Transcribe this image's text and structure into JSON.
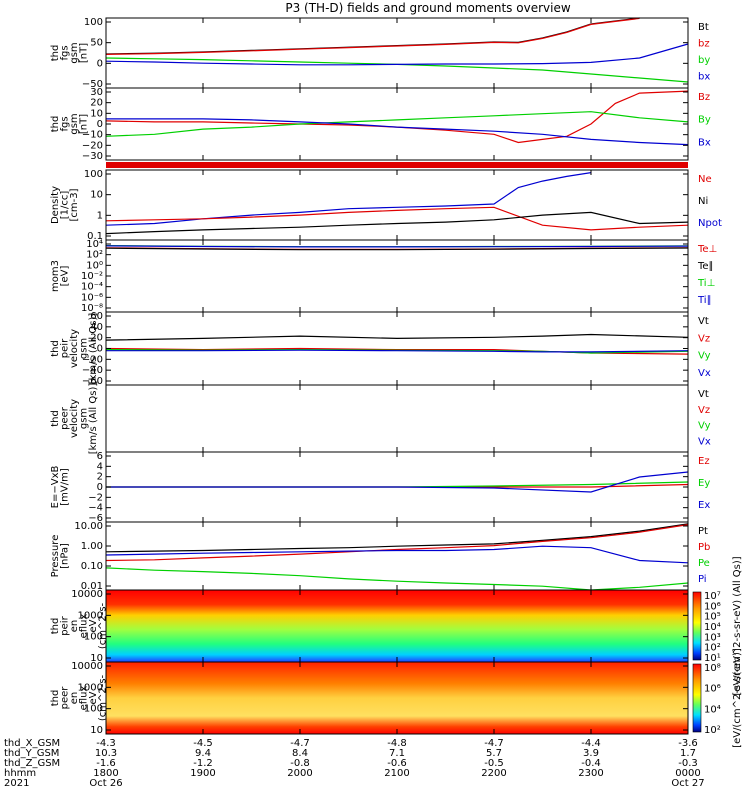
{
  "title": "P3 (TH-D) fields and ground moments overview",
  "colors": {
    "black": "#000000",
    "red": "#e00000",
    "green": "#00d000",
    "blue": "#0000d0"
  },
  "chart_data": [
    {
      "type": "line",
      "id": "fgs_gsm_bt",
      "ylabel": [
        "thd",
        "fgs",
        "gsm",
        "[nT]"
      ],
      "yticks": [
        "100",
        "50",
        "0",
        "−50"
      ],
      "ylim": [
        -70,
        105
      ],
      "series": [
        {
          "name": "Bt",
          "color": "black",
          "x": [
            1800,
            1830,
            1900,
            1930,
            2000,
            2030,
            2100,
            2130,
            2200,
            2215,
            2230,
            2245,
            2300,
            2330
          ],
          "values": [
            15,
            17,
            20,
            24,
            28,
            32,
            36,
            40,
            45,
            44,
            55,
            70,
            90,
            105
          ]
        },
        {
          "name": "bz",
          "color": "red",
          "x": [
            1800,
            1830,
            1900,
            1930,
            2000,
            2030,
            2100,
            2130,
            2200,
            2215,
            2230,
            2245,
            2300,
            2330
          ],
          "values": [
            14,
            16,
            19,
            23,
            27,
            31,
            35,
            39,
            44,
            43,
            54,
            69,
            89,
            104
          ]
        },
        {
          "name": "by",
          "color": "green",
          "x": [
            1800,
            1830,
            1900,
            1930,
            2000,
            2030,
            2100,
            2130,
            2200,
            2230,
            2300,
            2330,
            2400
          ],
          "values": [
            5,
            3,
            1,
            -2,
            -5,
            -8,
            -11,
            -15,
            -20,
            -25,
            -35,
            -45,
            -55
          ]
        },
        {
          "name": "bx",
          "color": "blue",
          "x": [
            1800,
            1830,
            1900,
            1930,
            2000,
            2030,
            2100,
            2130,
            2200,
            2230,
            2300,
            2330,
            2400
          ],
          "values": [
            -3,
            -5,
            -8,
            -10,
            -12,
            -12,
            -11,
            -10,
            -10,
            -9,
            -6,
            5,
            40
          ]
        }
      ],
      "legend": [
        "Bt",
        "bz",
        "by",
        "bx"
      ]
    },
    {
      "type": "line",
      "id": "fgs_gsm_components",
      "ylabel": [
        "thd",
        "fgs",
        "gsm",
        "[nT]"
      ],
      "yticks": [
        "30",
        "20",
        "10",
        "0",
        "−10",
        "−20",
        "−30"
      ],
      "ylim": [
        -35,
        35
      ],
      "series": [
        {
          "name": "Bz",
          "color": "red",
          "x": [
            1800,
            1830,
            1900,
            1930,
            2000,
            2030,
            2100,
            2130,
            2200,
            2215,
            2230,
            2245,
            2300,
            2315,
            2330,
            2400
          ],
          "values": [
            3,
            2,
            2,
            1,
            0,
            -1,
            -3,
            -6,
            -10,
            -18,
            -15,
            -12,
            0,
            20,
            30,
            32
          ]
        },
        {
          "name": "By",
          "color": "green",
          "x": [
            1800,
            1830,
            1900,
            1930,
            2000,
            2030,
            2100,
            2130,
            2200,
            2230,
            2300,
            2330,
            2400
          ],
          "values": [
            -12,
            -10,
            -5,
            -3,
            0,
            2,
            4,
            6,
            8,
            10,
            12,
            6,
            2
          ]
        },
        {
          "name": "Bx",
          "color": "blue",
          "x": [
            1800,
            1830,
            1900,
            1930,
            2000,
            2030,
            2100,
            2130,
            2200,
            2230,
            2300,
            2330,
            2400
          ],
          "values": [
            5,
            5,
            5,
            4,
            2,
            0,
            -3,
            -5,
            -7,
            -10,
            -15,
            -18,
            -20
          ]
        }
      ],
      "legend": [
        "Bz",
        "By",
        "Bx"
      ]
    },
    {
      "type": "line",
      "id": "density",
      "yscale": "log",
      "ylabel": [
        "Density",
        "[1/cc]",
        "[cm-3]"
      ],
      "yticks": [
        "100",
        "10",
        "1",
        "0.1"
      ],
      "ylim": [
        0.1,
        200
      ],
      "series": [
        {
          "name": "Npot",
          "color": "blue",
          "x": [
            1800,
            1830,
            1900,
            1930,
            2000,
            2030,
            2100,
            2130,
            2200,
            2215,
            2230,
            2245,
            2300
          ],
          "values": [
            0.5,
            0.6,
            1,
            1.5,
            2,
            3,
            3.5,
            4,
            5,
            30,
            60,
            100,
            150
          ]
        },
        {
          "name": "Ne",
          "color": "red",
          "x": [
            1800,
            1830,
            1900,
            1930,
            2000,
            2030,
            2100,
            2130,
            2200,
            2230,
            2300,
            2330,
            2400
          ],
          "values": [
            0.8,
            0.9,
            1,
            1.2,
            1.5,
            2,
            2.5,
            3,
            3.5,
            0.5,
            0.3,
            0.4,
            0.5
          ]
        },
        {
          "name": "Ni",
          "color": "black",
          "x": [
            1800,
            1830,
            1900,
            1930,
            2000,
            2030,
            2100,
            2130,
            2200,
            2230,
            2300,
            2330,
            2400
          ],
          "values": [
            0.2,
            0.25,
            0.3,
            0.35,
            0.4,
            0.5,
            0.6,
            0.7,
            0.9,
            1.5,
            2,
            0.6,
            0.7
          ]
        }
      ],
      "legend": [
        "Ne",
        "Ni",
        "Npot"
      ]
    },
    {
      "type": "line",
      "id": "temperature",
      "yscale": "log",
      "ylabel": [
        "mom3",
        "[eV]"
      ],
      "yticks": [
        "10⁴",
        "10²",
        "10⁰",
        "10⁻²",
        "10⁻⁴",
        "10⁻⁶",
        "10⁻⁸"
      ],
      "ylim": [
        1e-09,
        100000.0
      ],
      "series": [
        {
          "name": "Te⊥",
          "color": "red",
          "x": [
            1800,
            1900,
            2000,
            2100,
            2200,
            2300,
            2400
          ],
          "values": [
            3000,
            2000,
            1500,
            1500,
            1800,
            2500,
            3000
          ]
        },
        {
          "name": "Te∥",
          "color": "black",
          "x": [
            1800,
            1900,
            2000,
            2100,
            2200,
            2300,
            2400
          ],
          "values": [
            2500,
            1800,
            1300,
            1300,
            1600,
            2200,
            2800
          ]
        },
        {
          "name": "Ti⊥",
          "color": "green",
          "x": [
            1800,
            1900,
            2000,
            2100,
            2200,
            2300,
            2400
          ],
          "values": [
            8000,
            6000,
            5000,
            5000,
            5500,
            6000,
            7000
          ]
        },
        {
          "name": "Ti∥",
          "color": "blue",
          "x": [
            1800,
            1900,
            2000,
            2100,
            2200,
            2300,
            2400
          ],
          "values": [
            7000,
            5500,
            4500,
            4500,
            5000,
            5500,
            6500
          ]
        }
      ],
      "legend": [
        "Te⊥",
        "Te∥",
        "Ti⊥",
        "Ti∥"
      ]
    },
    {
      "type": "line",
      "id": "peir_velocity",
      "ylabel": [
        "thd",
        "peir",
        "velocity",
        "gsm",
        "[km/s (All Qs)]"
      ],
      "yticks": [
        "60",
        "40",
        "20",
        "0",
        "−20",
        "−40",
        "−60"
      ],
      "ylim": [
        -65,
        65
      ],
      "series": [
        {
          "name": "Vt",
          "color": "black",
          "x": [
            1800,
            1900,
            2000,
            2100,
            2200,
            2230,
            2300,
            2400
          ],
          "values": [
            15,
            18,
            22,
            18,
            20,
            22,
            25,
            20
          ]
        },
        {
          "name": "Vz",
          "color": "red",
          "x": [
            1800,
            1900,
            2000,
            2100,
            2200,
            2230,
            2300,
            2400
          ],
          "values": [
            0,
            -2,
            0,
            -2,
            -2,
            -5,
            -8,
            -10
          ]
        },
        {
          "name": "Vy",
          "color": "green",
          "x": [
            1800,
            1900,
            2000,
            2100,
            2200,
            2230,
            2300,
            2400
          ],
          "values": [
            -2,
            -3,
            -2,
            -3,
            -4,
            -5,
            -8,
            -5
          ]
        },
        {
          "name": "Vx",
          "color": "blue",
          "x": [
            1800,
            1900,
            2000,
            2100,
            2200,
            2230,
            2300,
            2400
          ],
          "values": [
            -4,
            -4,
            -3,
            -4,
            -5,
            -6,
            -6,
            -4
          ]
        }
      ],
      "legend": [
        "Vt",
        "Vz",
        "Vy",
        "Vx"
      ]
    },
    {
      "type": "line",
      "id": "peer_velocity",
      "ylabel": [
        "thd",
        "peer",
        "velocity",
        "gsm",
        "[km/s (All Qs)]"
      ],
      "yticks": [],
      "series": [],
      "legend": [
        "Vt",
        "Vz",
        "Vy",
        "Vx"
      ]
    },
    {
      "type": "line",
      "id": "e_field",
      "ylabel": [
        "E=−VxB",
        "[mV/m]"
      ],
      "yticks": [
        "6",
        "4",
        "2",
        "0",
        "−2",
        "−4",
        "−6"
      ],
      "ylim": [
        -7,
        7
      ],
      "series": [
        {
          "name": "Ez",
          "color": "red",
          "x": [
            1800,
            1900,
            2000,
            2100,
            2200,
            2300,
            2400
          ],
          "values": [
            0,
            0,
            0,
            0,
            0,
            0,
            0.5
          ]
        },
        {
          "name": "Ey",
          "color": "green",
          "x": [
            1800,
            1900,
            2000,
            2100,
            2200,
            2300,
            2400
          ],
          "values": [
            0,
            0,
            0,
            0,
            0.2,
            0.5,
            1
          ]
        },
        {
          "name": "Ex",
          "color": "blue",
          "x": [
            1800,
            1900,
            2000,
            2100,
            2200,
            2300,
            2330,
            2400
          ],
          "values": [
            0,
            0,
            0,
            0,
            -0.2,
            -1,
            2,
            3
          ]
        }
      ],
      "legend": [
        "Ez",
        "Ey",
        "Ex"
      ]
    },
    {
      "type": "line",
      "id": "pressure",
      "yscale": "log",
      "ylabel": [
        "Pressure",
        "[nPa]"
      ],
      "yticks": [
        "10.00",
        "1.00",
        "0.10",
        "0.01"
      ],
      "ylim": [
        0.005,
        25
      ],
      "series": [
        {
          "name": "Pt",
          "color": "black",
          "x": [
            1800,
            1830,
            1900,
            1930,
            2000,
            2030,
            2100,
            2130,
            2200,
            2230,
            2300,
            2330,
            2400
          ],
          "values": [
            0.6,
            0.65,
            0.7,
            0.8,
            0.9,
            1,
            1.2,
            1.4,
            1.6,
            2.5,
            4,
            8,
            20
          ]
        },
        {
          "name": "Pb",
          "color": "red",
          "x": [
            1800,
            1830,
            1900,
            1930,
            2000,
            2030,
            2100,
            2130,
            2200,
            2230,
            2300,
            2330,
            2400
          ],
          "values": [
            0.2,
            0.22,
            0.28,
            0.35,
            0.45,
            0.6,
            0.8,
            1,
            1.3,
            2.2,
            3.5,
            7,
            18
          ]
        },
        {
          "name": "Pe",
          "color": "green",
          "x": [
            1800,
            1830,
            1900,
            1930,
            2000,
            2030,
            2100,
            2130,
            2200,
            2230,
            2300,
            2330,
            2400
          ],
          "values": [
            0.08,
            0.06,
            0.05,
            0.04,
            0.03,
            0.02,
            0.015,
            0.012,
            0.01,
            0.008,
            0.005,
            0.007,
            0.012
          ]
        },
        {
          "name": "Pi",
          "color": "blue",
          "x": [
            1800,
            1830,
            1900,
            1930,
            2000,
            2030,
            2100,
            2130,
            2200,
            2230,
            2300,
            2330,
            2400
          ],
          "values": [
            0.4,
            0.45,
            0.5,
            0.55,
            0.6,
            0.65,
            0.7,
            0.7,
            0.8,
            1.2,
            1,
            0.2,
            0.15
          ]
        }
      ],
      "legend": [
        "Pt",
        "Pb",
        "Pe",
        "Pi"
      ]
    },
    {
      "type": "heatmap",
      "id": "peir_eflux",
      "ylabel": [
        "thd",
        "peir",
        "en",
        "eflux",
        "eV",
        "(cm^2-s-",
        "sr-eV)"
      ],
      "yticks": [
        "10000",
        "1000",
        "100",
        "10"
      ],
      "ylim": [
        5,
        20000
      ],
      "colorbar": {
        "label": "[eV/(cm^2-s-sr-eV) (All Qs)]",
        "ticks": [
          "10⁷",
          "10⁶",
          "10⁵",
          "10⁴",
          "10³",
          "10²",
          "10¹"
        ]
      }
    },
    {
      "type": "heatmap",
      "id": "peer_eflux",
      "ylabel": [
        "thd",
        "peer",
        "en",
        "eflux",
        "eV",
        "(cm^2-s-",
        "sr-eV)"
      ],
      "yticks": [
        "10000",
        "1000",
        "100",
        "10"
      ],
      "ylim": [
        5,
        20000
      ],
      "colorbar": {
        "label": "[eV/(cm^2-s-sr-eV)]",
        "ticks": [
          "10⁸",
          "10⁶",
          "10⁴",
          "10²"
        ]
      }
    }
  ],
  "xaxis": {
    "range": [
      1800,
      2400
    ],
    "hhmm": [
      "1800",
      "1900",
      "2000",
      "2100",
      "2200",
      "2300",
      "0000"
    ],
    "dates": [
      "Oct 26",
      "",
      "",
      "",
      "",
      "",
      "Oct 27"
    ],
    "ephem_labels": [
      "thd_X_GSM",
      "thd_Y_GSM",
      "thd_Z_GSM",
      "hhmm",
      "2021"
    ],
    "x_gsm": [
      "-4.3",
      "-4.5",
      "-4.7",
      "-4.8",
      "-4.7",
      "-4.4",
      "-3.6"
    ],
    "y_gsm": [
      "10.3",
      "9.4",
      "8.4",
      "7.1",
      "5.7",
      "3.9",
      "1.7"
    ],
    "z_gsm": [
      "-1.6",
      "-1.2",
      "-0.8",
      "-0.6",
      "-0.5",
      "-0.4",
      "-0.3"
    ]
  }
}
